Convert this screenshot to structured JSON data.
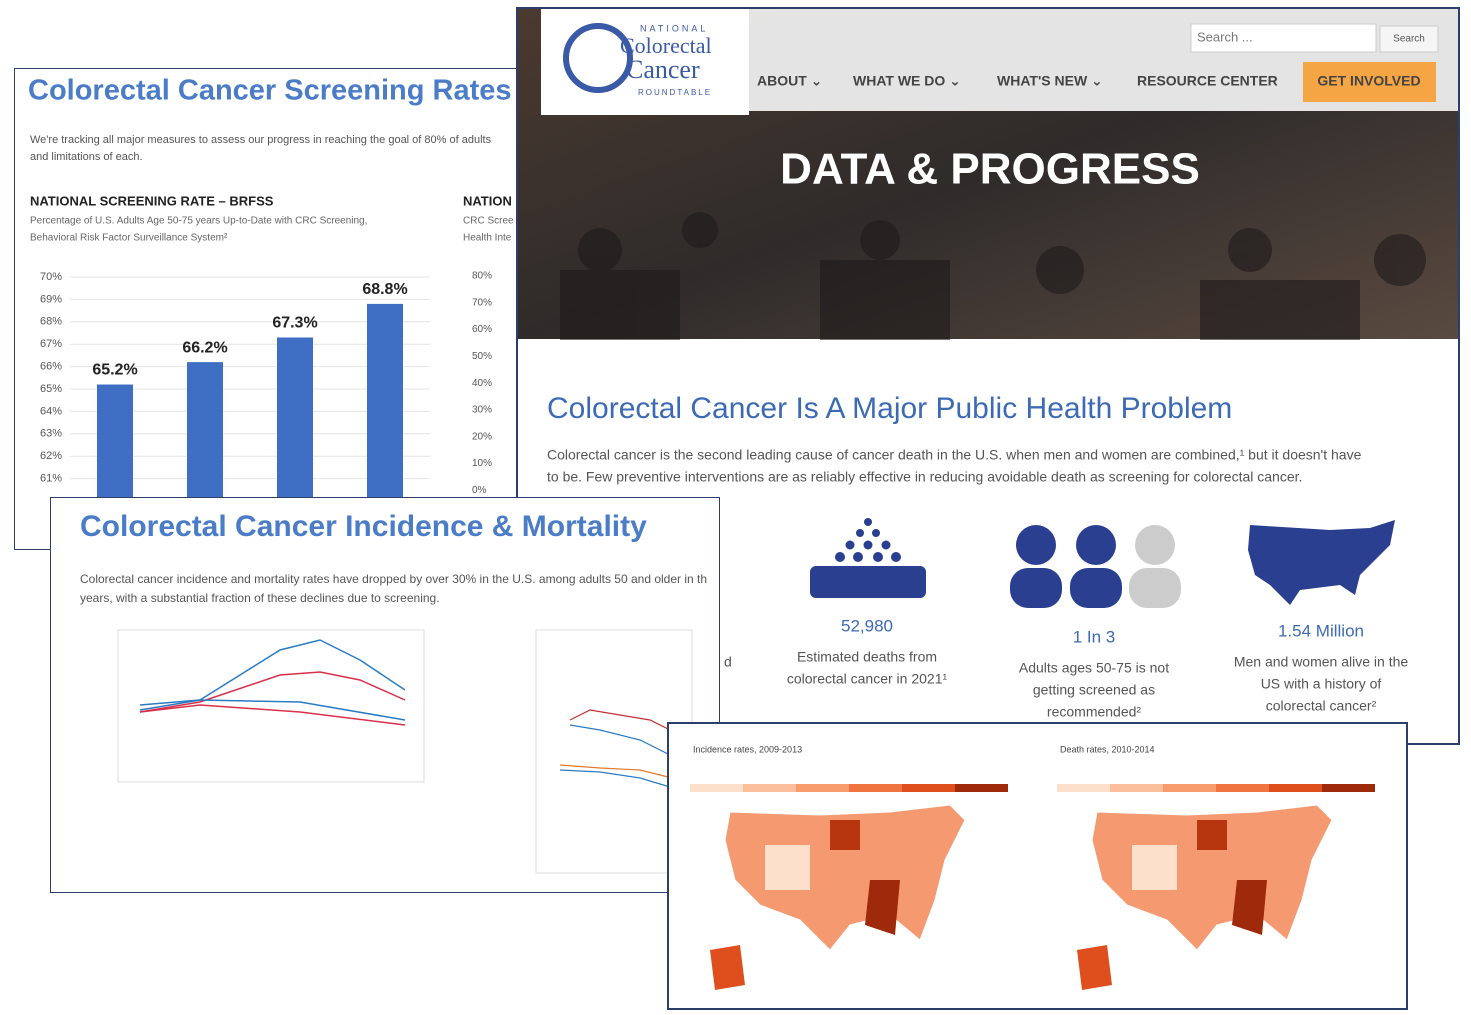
{
  "screening_panel": {
    "title": "Colorectal Cancer Screening Rates",
    "intro": [
      "We're tracking all major measures to assess our progress in reaching the goal of 80% of adults",
      "and limitations of each."
    ],
    "chart_data": {
      "type": "bar",
      "title": "NATIONAL SCREENING RATE – BRFSS",
      "subtitle": [
        "Percentage of U.S. Adults Age 50-75 years Up-to-Date with CRC Screening,",
        "Behavioral Risk Factor Surveillance System²"
      ],
      "categories": [
        null,
        null,
        null,
        null
      ],
      "values": [
        65.2,
        66.2,
        67.3,
        68.8
      ],
      "value_labels": [
        "65.2%",
        "66.2%",
        "67.3%",
        "68.8%"
      ],
      "color": "#3f6fc4",
      "ylim": [
        60,
        70
      ],
      "yticks": [
        {
          "value": 70,
          "label": "70%"
        },
        {
          "value": 69,
          "label": "69%"
        },
        {
          "value": 68,
          "label": "68%"
        },
        {
          "value": 67,
          "label": "67%"
        },
        {
          "value": 66,
          "label": "66%"
        },
        {
          "value": 65,
          "label": "65%"
        },
        {
          "value": 64,
          "label": "64%"
        },
        {
          "value": 63,
          "label": "63%"
        },
        {
          "value": 62,
          "label": "62%"
        },
        {
          "value": 61,
          "label": "61%"
        }
      ],
      "grid": true
    },
    "partial_chart": {
      "title": "NATION",
      "subtitle": [
        "CRC Scree",
        "Health Inte"
      ],
      "ticks": [
        "80%",
        "70%",
        "60%",
        "50%",
        "40%",
        "30%",
        "20%",
        "10%",
        "0%"
      ]
    }
  },
  "website": {
    "logo": [
      "NATIONAL",
      "Colorectal",
      "Cancer",
      "ROUNDTABLE"
    ],
    "search_placeholder": "Search ...",
    "search_button": "Search",
    "nav": [
      "ABOUT ⌄",
      "WHAT WE DO ⌄",
      "WHAT'S NEW ⌄",
      "RESOURCE CENTER"
    ],
    "cta": "GET INVOLVED",
    "hero": "DATA & PROGRESS",
    "heading": "Colorectal Cancer Is A Major Public Health Problem",
    "paragraph": [
      "Colorectal cancer is the second leading cause of cancer death in the U.S. when men and women are combined,¹ but it doesn't have",
      "to be. Few preventive interventions are as reliably effective in reducing avoidable death as screening for colorectal cancer."
    ],
    "partial_text": "d",
    "stats": [
      {
        "number": "52,980",
        "text": [
          "Estimated deaths from",
          "colorectal cancer in 2021¹"
        ]
      },
      {
        "number": "1 In 3",
        "text": [
          "Adults ages 50-75 is not",
          "getting screened as",
          "recommended²"
        ]
      },
      {
        "number": "1.54 Million",
        "text": [
          "Men and women alive in the",
          "US with a history of",
          "colorectal cancer²"
        ]
      }
    ]
  },
  "incidence_panel": {
    "title": "Colorectal Cancer Incidence & Mortality",
    "text": [
      "Colorectal cancer incidence and mortality rates have dropped by over 30% in the U.S. among adults 50 and older in th",
      "years, with a substantial fraction of these declines due to screening."
    ]
  },
  "maps_panel": {
    "titles": [
      "Incidence rates, 2009-2013",
      "Death rates, 2010-2014"
    ]
  }
}
